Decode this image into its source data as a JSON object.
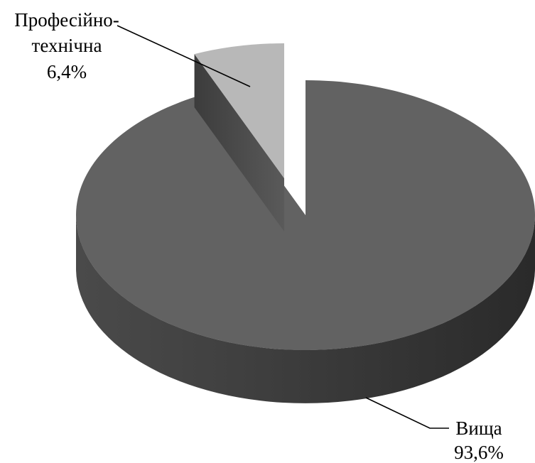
{
  "chart_data": {
    "type": "pie",
    "style": "3d-exploded",
    "slices": [
      {
        "label_lines": [
          "Професійно-",
          "технічна"
        ],
        "value": 6.4,
        "value_label": "6,4%",
        "color": "#b8b8b8",
        "exploded": true
      },
      {
        "label_lines": [
          "Вища"
        ],
        "value": 93.6,
        "value_label": "93,6%",
        "color": "#626262",
        "exploded": false
      }
    ],
    "legend": "none"
  }
}
